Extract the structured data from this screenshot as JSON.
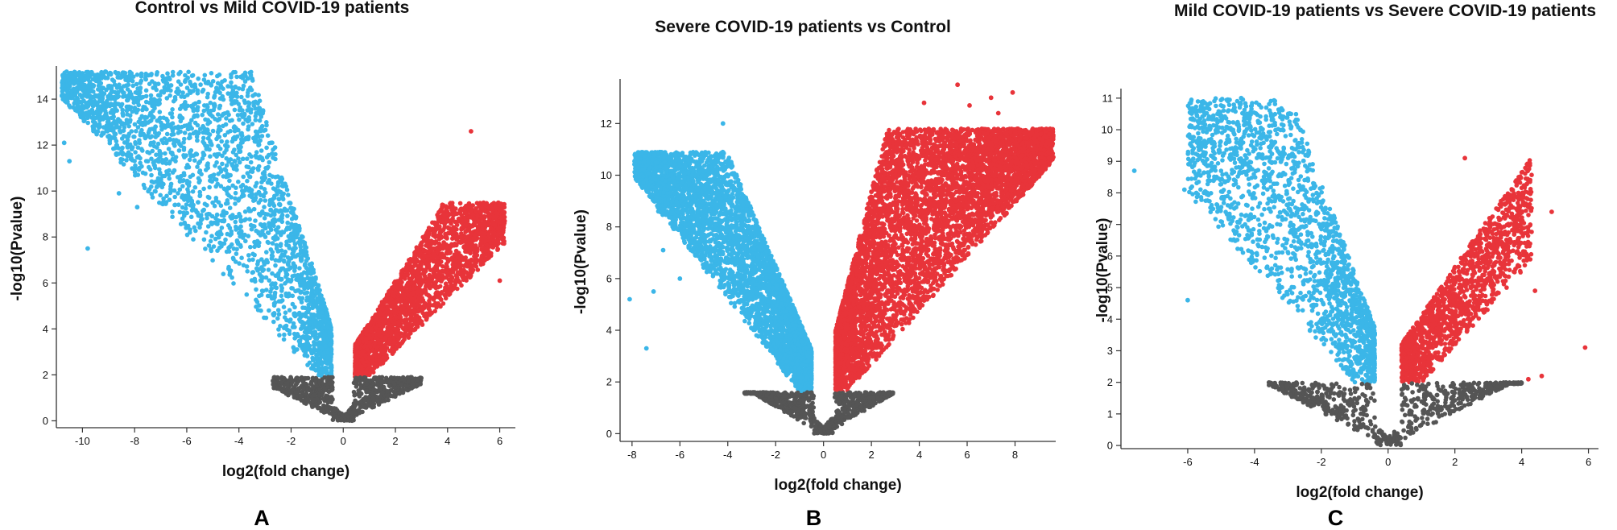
{
  "figure": {
    "panel_letters": [
      "A",
      "B",
      "C"
    ]
  },
  "colors": {
    "down": "#3bb6e8",
    "up": "#e8343a",
    "ns": "#555555",
    "axis": "#333333"
  },
  "chart_data": [
    {
      "type": "scatter",
      "panel": "A",
      "title": "Control vs Mild COVID-19 patients",
      "xlabel": "log2(fold change)",
      "ylabel": "-log10(Pvalue)",
      "xlim": [
        -11,
        6.6
      ],
      "ylim": [
        -0.3,
        15.3
      ],
      "xticks": [
        -10,
        -8,
        -6,
        -4,
        -2,
        0,
        2,
        4,
        6
      ],
      "yticks": [
        0,
        2,
        4,
        6,
        8,
        10,
        12,
        14
      ],
      "threshold": {
        "y": 1.9,
        "x_neg": -0.45,
        "x_pos": 0.45
      },
      "series": [
        {
          "name": "down",
          "color": "#3bb6e8",
          "count": 2600,
          "xmin": -10.8,
          "xmax": -0.45,
          "scale": 4.0,
          "span": 1.55,
          "ymaxCap": 15.2,
          "seed": 11,
          "points": [
            [
              -10.7,
              12.1
            ],
            [
              -10.5,
              11.3
            ],
            [
              -9.9,
              14.5
            ],
            [
              -9.7,
              13.8
            ],
            [
              -9.6,
              13.8
            ],
            [
              -8.9,
              14.1
            ],
            [
              -8.5,
              14.4
            ],
            [
              -7.6,
              12.9
            ],
            [
              -7.2,
              12.8
            ],
            [
              -6.6,
              14.6
            ],
            [
              -6.3,
              15.1
            ],
            [
              -8.6,
              9.9
            ],
            [
              -7.9,
              9.3
            ],
            [
              -9.8,
              7.5
            ],
            [
              -6.9,
              10.3
            ],
            [
              -5.6,
              12.2
            ],
            [
              -4.5,
              12.9
            ]
          ]
        },
        {
          "name": "up",
          "color": "#e8343a",
          "count": 2300,
          "xmin": 0.45,
          "xmax": 6.2,
          "scale": 2.0,
          "span": 1.4,
          "ymaxCap": 9.5,
          "seed": 23,
          "points": [
            [
              4.9,
              12.6
            ],
            [
              5.7,
              8.6
            ],
            [
              6.1,
              7.9
            ],
            [
              5.2,
              8.7
            ],
            [
              6.0,
              6.1
            ],
            [
              3.8,
              9.4
            ]
          ]
        },
        {
          "name": "ns",
          "color": "#555555",
          "count": 800,
          "xmin": -2.7,
          "xmax": 3.0,
          "scale": 2.6,
          "span": 1.3,
          "ymaxCap": 1.9,
          "seed": 37,
          "points": []
        }
      ]
    },
    {
      "type": "scatter",
      "panel": "B",
      "title": "Severe COVID-19 patients vs Control",
      "xlabel": "log2(fold change)",
      "ylabel": "-log10(Pvalue)",
      "xlim": [
        -8.5,
        9.7
      ],
      "ylim": [
        -0.3,
        13.6
      ],
      "xticks": [
        -8,
        -6,
        -4,
        -2,
        0,
        2,
        4,
        6,
        8
      ],
      "yticks": [
        0,
        2,
        4,
        6,
        8,
        10,
        12
      ],
      "threshold": {
        "y": 1.6,
        "x_neg": -0.5,
        "x_pos": 0.5
      },
      "series": [
        {
          "name": "down",
          "color": "#3bb6e8",
          "count": 4200,
          "xmin": -7.9,
          "xmax": -0.5,
          "scale": 2.4,
          "span": 1.5,
          "ymaxCap": 10.9,
          "seed": 41,
          "points": [
            [
              -8.1,
              5.2
            ],
            [
              -7.4,
              3.3
            ],
            [
              -7.1,
              5.5
            ],
            [
              -6.2,
              10.8
            ],
            [
              -4.2,
              12.0
            ],
            [
              -6.7,
              7.1
            ],
            [
              -6.9,
              8.6
            ],
            [
              -6.0,
              6.0
            ]
          ]
        },
        {
          "name": "up",
          "color": "#e8343a",
          "count": 5800,
          "xmin": 0.5,
          "xmax": 9.6,
          "scale": 4.0,
          "span": 1.3,
          "ymaxCap": 11.8,
          "seed": 53,
          "points": [
            [
              5.6,
              13.5
            ],
            [
              7.9,
              13.2
            ],
            [
              7.0,
              13.0
            ],
            [
              6.1,
              12.7
            ],
            [
              4.2,
              12.8
            ],
            [
              9.6,
              10.7
            ],
            [
              8.6,
              9.8
            ],
            [
              7.3,
              12.4
            ]
          ]
        },
        {
          "name": "ns",
          "color": "#555555",
          "count": 900,
          "xmin": -3.3,
          "xmax": 2.9,
          "scale": 2.6,
          "span": 1.2,
          "ymaxCap": 1.6,
          "seed": 67,
          "points": []
        }
      ]
    },
    {
      "type": "scatter",
      "panel": "C",
      "title": "Mild COVID-19 patients vs Severe COVID-19 patients",
      "xlabel": "log2(fold change)",
      "ylabel": "-log10(Pvalue)",
      "xlim": [
        -8,
        6.3
      ],
      "ylim": [
        -0.1,
        11.2
      ],
      "xticks": [
        -6,
        -4,
        -2,
        0,
        2,
        4,
        6
      ],
      "yticks": [
        0,
        1,
        2,
        3,
        4,
        5,
        6,
        7,
        8,
        9,
        10,
        11
      ],
      "threshold": {
        "y": 2.0,
        "x_neg": -0.4,
        "x_pos": 0.4
      },
      "series": [
        {
          "name": "down",
          "color": "#3bb6e8",
          "count": 1900,
          "xmin": -6.0,
          "xmax": -0.4,
          "scale": 3.2,
          "span": 1.5,
          "ymaxCap": 11.0,
          "seed": 71,
          "points": [
            [
              -7.6,
              8.7
            ],
            [
              -6.1,
              8.1
            ],
            [
              -6.0,
              4.6
            ],
            [
              -4.4,
              11.0
            ],
            [
              -4.6,
              10.7
            ],
            [
              -4.2,
              10.4
            ],
            [
              -5.3,
              9.7
            ]
          ]
        },
        {
          "name": "up",
          "color": "#e8343a",
          "count": 1500,
          "xmin": 0.4,
          "xmax": 4.3,
          "scale": 1.7,
          "span": 1.45,
          "ymaxCap": 9.2,
          "seed": 83,
          "points": [
            [
              2.3,
              9.1
            ],
            [
              4.9,
              7.4
            ],
            [
              5.9,
              3.1
            ],
            [
              4.4,
              4.9
            ],
            [
              4.2,
              2.1
            ],
            [
              4.6,
              2.2
            ]
          ]
        },
        {
          "name": "ns",
          "color": "#555555",
          "count": 700,
          "xmin": -3.6,
          "xmax": 4.0,
          "scale": 2.3,
          "span": 1.35,
          "ymaxCap": 2.0,
          "seed": 97,
          "points": []
        }
      ]
    }
  ]
}
